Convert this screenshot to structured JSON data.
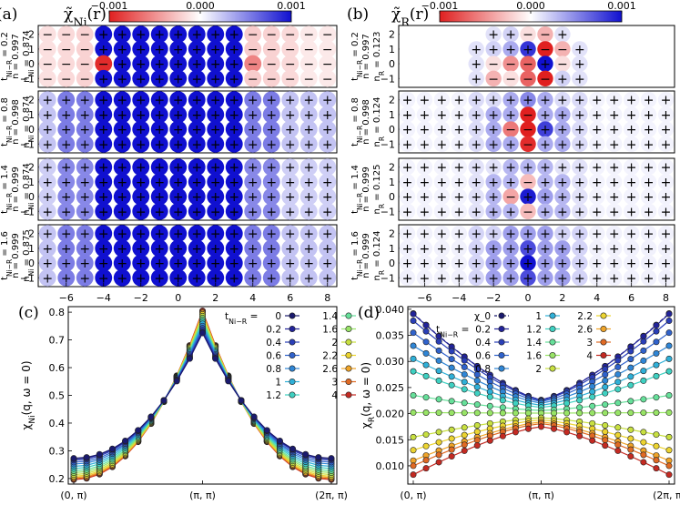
{
  "chart_data": {
    "panels": [
      {
        "id": "a",
        "label": "(a)",
        "type": "heatmap",
        "title": "χ̃_Ni(r)",
        "colorbar": {
          "min": -0.001,
          "mid": 0,
          "max": 0.001,
          "ticks": [
            "−0.001",
            "0.000",
            "0.001"
          ],
          "colors": [
            "#e02020",
            "#ffffff",
            "#1010d0"
          ]
        },
        "x_ticks": [
          "−6",
          "−4",
          "−2",
          "0",
          "2",
          "4",
          "6",
          "8"
        ],
        "y_ticks": [
          "2",
          "1",
          "0",
          "−1"
        ],
        "rows": [
          {
            "t": "0.2",
            "labels": [
              "t_{Ni−R} = 0.2",
              "n = 0.997",
              "n_Ni = 0.874"
            ],
            "pattern": "a_t02"
          },
          {
            "t": "0.8",
            "labels": [
              "t_{Ni−R} = 0.8",
              "n = 0.998",
              "n_Ni = 0.874"
            ],
            "pattern": "a_t08"
          },
          {
            "t": "1.4",
            "labels": [
              "t_{Ni−R} = 1.4",
              "n = 0.999",
              "n_Ni = 0.874"
            ],
            "pattern": "a_t14"
          },
          {
            "t": "1.6",
            "labels": [
              "t_{Ni−R} = 1.6",
              "n = 0.999",
              "n_Ni = 0.875"
            ],
            "pattern": "a_t16"
          }
        ]
      },
      {
        "id": "b",
        "label": "(b)",
        "type": "heatmap",
        "title": "χ̃_R(r)",
        "colorbar": {
          "min": -0.001,
          "mid": 0,
          "max": 0.001,
          "ticks": [
            "−0.001",
            "0.000",
            "0.001"
          ],
          "colors": [
            "#e02020",
            "#ffffff",
            "#1010d0"
          ]
        },
        "x_ticks": [
          "−6",
          "−4",
          "−2",
          "0",
          "2",
          "4",
          "6",
          "8"
        ],
        "y_ticks": [
          "2",
          "1",
          "0",
          "−1"
        ],
        "rows": [
          {
            "t": "0.2",
            "labels": [
              "t_{Ni−R} = 0.2",
              "n = 0.997",
              "n_R = 0.123"
            ],
            "pattern": "b_t02"
          },
          {
            "t": "0.8",
            "labels": [
              "t_{Ni−R} = 0.8",
              "n = 0.998",
              "n_R = 0.124"
            ],
            "pattern": "b_t08"
          },
          {
            "t": "1.4",
            "labels": [
              "t_{Ni−R} = 1.4",
              "n = 0.999",
              "n_R = 0.125"
            ],
            "pattern": "b_t14"
          },
          {
            "t": "1.6",
            "labels": [
              "t_{Ni−R} = 1.6",
              "n = 0.999",
              "n_R = 0.124"
            ],
            "pattern": "b_t16"
          }
        ]
      },
      {
        "id": "c",
        "label": "(c)",
        "type": "line",
        "ylabel": "χ_Ni(q, ω = 0)",
        "x_ticks": [
          "(0, π)",
          "(π, π)",
          "(2π, π)"
        ],
        "ylim": [
          0.18,
          0.82
        ],
        "y_ticks": [
          "0.2",
          "0.3",
          "0.4",
          "0.5",
          "0.6",
          "0.7",
          "0.8"
        ],
        "legend_title": "t_{Ni−R} =",
        "series": [
          {
            "name": "0",
            "color": "#1a1a6e",
            "base": 0.273,
            "peak": 0.725
          },
          {
            "name": "0.2",
            "color": "#22239a",
            "base": 0.271,
            "peak": 0.728
          },
          {
            "name": "0.4",
            "color": "#2a3fb8",
            "base": 0.266,
            "peak": 0.735
          },
          {
            "name": "0.6",
            "color": "#2f62cc",
            "base": 0.259,
            "peak": 0.742
          },
          {
            "name": "0.8",
            "color": "#2f86d6",
            "base": 0.252,
            "peak": 0.75
          },
          {
            "name": "1",
            "color": "#2fb0d8",
            "base": 0.244,
            "peak": 0.758
          },
          {
            "name": "1.2",
            "color": "#3ed1c2",
            "base": 0.236,
            "peak": 0.765
          },
          {
            "name": "1.4",
            "color": "#66e09a",
            "base": 0.228,
            "peak": 0.772
          },
          {
            "name": "1.6",
            "color": "#98e466",
            "base": 0.221,
            "peak": 0.779
          },
          {
            "name": "2",
            "color": "#c8e040",
            "base": 0.214,
            "peak": 0.786
          },
          {
            "name": "2.2",
            "color": "#ecd430",
            "base": 0.208,
            "peak": 0.792
          },
          {
            "name": "2.6",
            "color": "#f0a428",
            "base": 0.203,
            "peak": 0.797
          },
          {
            "name": "3",
            "color": "#e06a24",
            "base": 0.199,
            "peak": 0.801
          },
          {
            "name": "4",
            "color": "#c42a22",
            "base": 0.196,
            "peak": 0.805
          }
        ]
      },
      {
        "id": "d",
        "label": "(d)",
        "type": "line",
        "ylabel": "χ_R(q, ω = 0)",
        "x_ticks": [
          "(0, π)",
          "(π, π)",
          "(2π, π)"
        ],
        "ylim": [
          0.0065,
          0.0405
        ],
        "y_ticks": [
          "0.010",
          "0.015",
          "0.020",
          "0.025",
          "0.030",
          "0.035",
          "0.040"
        ],
        "legend_title": "t_{Ni−R} =",
        "chi0": {
          "name": "χ_0",
          "color": "#1a1a6e",
          "edge": 0.0392,
          "center": 0.0226
        },
        "series": [
          {
            "name": "0.2",
            "color": "#22239a",
            "edge": 0.0391,
            "center": 0.0226
          },
          {
            "name": "0.4",
            "color": "#2a3fb8",
            "edge": 0.0378,
            "center": 0.0225
          },
          {
            "name": "0.6",
            "color": "#2f62cc",
            "edge": 0.0355,
            "center": 0.0223
          },
          {
            "name": "0.8",
            "color": "#2f86d6",
            "edge": 0.033,
            "center": 0.022
          },
          {
            "name": "1",
            "color": "#2fb0d8",
            "edge": 0.0305,
            "center": 0.0216
          },
          {
            "name": "1.2",
            "color": "#3ed1c2",
            "edge": 0.0281,
            "center": 0.0212
          },
          {
            "name": "1.4",
            "color": "#66e09a",
            "edge": 0.0235,
            "center": 0.0206
          },
          {
            "name": "1.6",
            "color": "#98e466",
            "edge": 0.0202,
            "center": 0.0201
          },
          {
            "name": "2",
            "color": "#c8e040",
            "edge": 0.0155,
            "center": 0.0192
          },
          {
            "name": "2.2",
            "color": "#ecd430",
            "edge": 0.013,
            "center": 0.0188
          },
          {
            "name": "2.6",
            "color": "#f0a428",
            "edge": 0.011,
            "center": 0.0184
          },
          {
            "name": "3",
            "color": "#e06a24",
            "edge": 0.01,
            "center": 0.0181
          },
          {
            "name": "4",
            "color": "#c42a22",
            "edge": 0.0083,
            "center": 0.0175
          }
        ]
      }
    ]
  }
}
